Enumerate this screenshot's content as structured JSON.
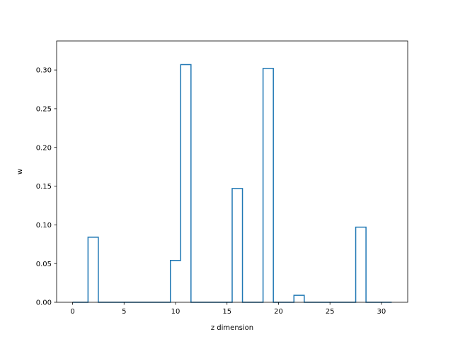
{
  "chart_data": {
    "type": "step",
    "title": "",
    "xlabel": "z dimension",
    "ylabel": "w",
    "xlim": [
      -1.55,
      32.55
    ],
    "ylim": [
      0,
      0.3375
    ],
    "xticks": [
      0,
      5,
      10,
      15,
      20,
      25,
      30
    ],
    "xtick_labels": [
      "0",
      "5",
      "10",
      "15",
      "20",
      "25",
      "30"
    ],
    "yticks": [
      0.0,
      0.05,
      0.1,
      0.15,
      0.2,
      0.25,
      0.3
    ],
    "ytick_labels": [
      "0.00",
      "0.05",
      "0.10",
      "0.15",
      "0.20",
      "0.25",
      "0.30"
    ],
    "grid": false,
    "line_color": "#1f77b4",
    "step_where": "mid",
    "x": [
      0,
      1,
      2,
      3,
      4,
      5,
      6,
      7,
      8,
      9,
      10,
      11,
      12,
      13,
      14,
      15,
      16,
      17,
      18,
      19,
      20,
      21,
      22,
      23,
      24,
      25,
      26,
      27,
      28,
      29,
      30,
      31
    ],
    "values": [
      0,
      0,
      0.084,
      0,
      0,
      0,
      0,
      0,
      0,
      0,
      0.054,
      0.307,
      0,
      0,
      0,
      0,
      0.147,
      0,
      0,
      0.302,
      0,
      0,
      0.009,
      0,
      0,
      0,
      0,
      0,
      0.097,
      0,
      0,
      0
    ]
  }
}
